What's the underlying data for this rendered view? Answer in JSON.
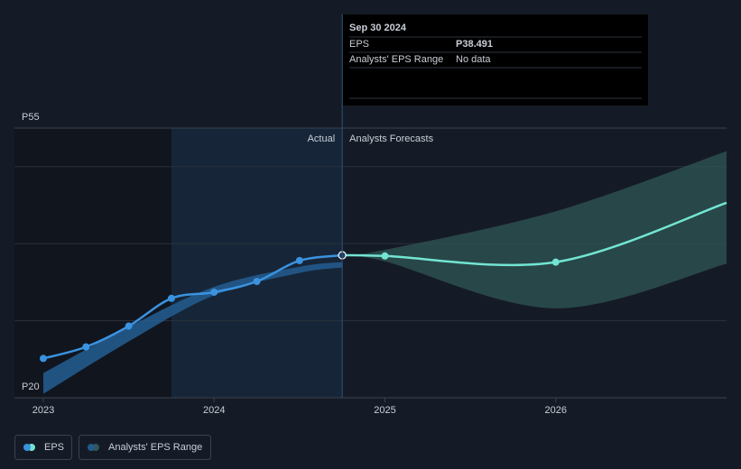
{
  "chart_data": {
    "type": "line",
    "actual_label": "Actual",
    "forecast_label": "Analysts Forecasts",
    "xlim": [
      2022.831,
      2027.0
    ],
    "xticks": [
      2023,
      2024,
      2025,
      2026
    ],
    "ylim": [
      20,
      55
    ],
    "yticks": [
      {
        "value": 55,
        "label": "P55"
      },
      {
        "value": 20,
        "label": "P20"
      }
    ],
    "ygrid": [
      50,
      40,
      30
    ],
    "highlight_xlim": [
      2023.75,
      2024.75
    ],
    "series": [
      {
        "name": "EPS",
        "color": "#3a93e0",
        "forecast_color": "#72e5d2",
        "actual": {
          "x": [
            2023.0,
            2023.25,
            2023.5,
            2023.75,
            2024.0,
            2024.25,
            2024.5,
            2024.75
          ],
          "values": [
            25.1,
            26.6,
            29.3,
            32.9,
            33.7,
            35.1,
            37.8,
            38.491
          ]
        },
        "forecast": {
          "x": [
            2024.75,
            2025.0,
            2026.0,
            2027.0
          ],
          "values": [
            38.491,
            38.4,
            37.6,
            45.3
          ]
        }
      },
      {
        "name": "Analysts' EPS Range",
        "color": "#245a8c",
        "forecast_color": "#2f5756",
        "actual": {
          "x": [
            2023.0,
            2023.5,
            2024.0,
            2024.5,
            2024.75
          ],
          "low": [
            20.5,
            27.3,
            33.3,
            36.2,
            36.9
          ],
          "high": [
            23.2,
            29.2,
            34.4,
            37.0,
            37.6
          ]
        },
        "forecast": {
          "x": [
            2024.75,
            2025.0,
            2026.0,
            2027.0
          ],
          "low": [
            38.491,
            37.7,
            31.6,
            37.4
          ],
          "high": [
            38.491,
            39.2,
            44.2,
            52.0
          ]
        }
      }
    ],
    "tooltip": {
      "date": "Sep 30 2024",
      "eps_label": "EPS",
      "eps_value": {
        "value": 38.491,
        "label": "P38.491"
      },
      "range_label": "Analysts' EPS Range",
      "range_value": "No data"
    }
  }
}
